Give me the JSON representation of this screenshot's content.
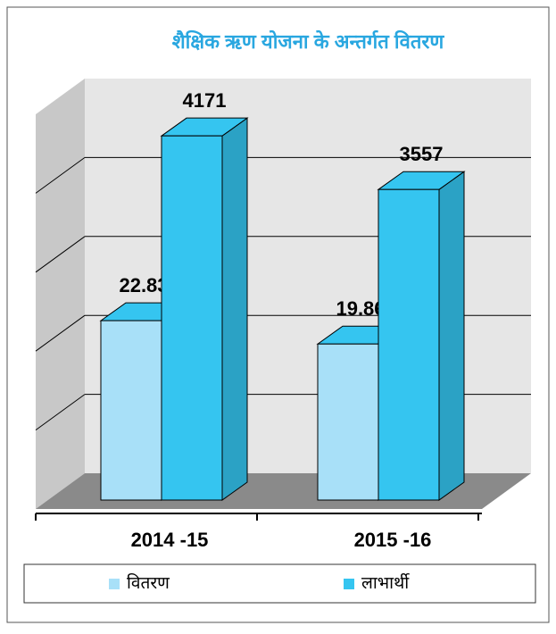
{
  "chart_data": {
    "type": "bar",
    "title": "शैक्षिक ऋण योजना के अन्तर्गत वितरण",
    "categories": [
      "2014 -15",
      "2015 -16"
    ],
    "series": [
      {
        "name": "वितरण",
        "color": "#a8e0f8",
        "values": [
          22.83,
          19.86
        ],
        "axis": "y2"
      },
      {
        "name": "लाभार्थी",
        "color": "#35c5f0",
        "values": [
          4171,
          3557
        ]
      }
    ],
    "ylim": [
      0,
      4500
    ],
    "yticks": [
      0,
      900,
      1800,
      2700,
      3600,
      4500
    ],
    "y2lim": [
      0,
      50
    ],
    "grid": true,
    "legend": "bottom"
  }
}
